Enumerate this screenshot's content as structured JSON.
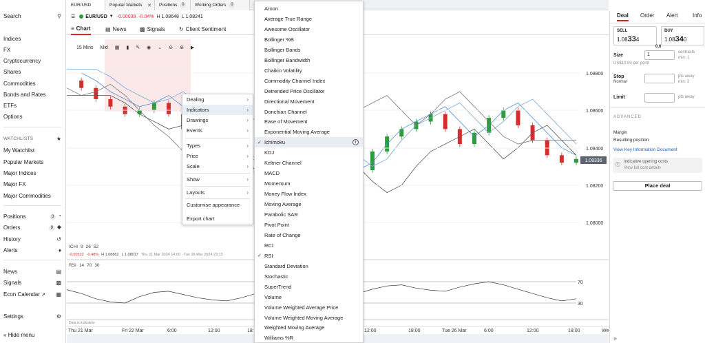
{
  "sidebar": {
    "search": "Search",
    "markets": [
      "Indices",
      "FX",
      "Cryptocurrency",
      "Shares",
      "Commodities",
      "Bonds and Rates",
      "ETFs",
      "Options"
    ],
    "watchlists_header": "WATCHLISTS",
    "watchlists": [
      "My Watchlist",
      "Popular Markets",
      "Major Indices",
      "Major FX",
      "Major Commodities"
    ],
    "positions": "Positions",
    "positions_count": "0",
    "orders": "Orders",
    "orders_count": "0",
    "history": "History",
    "alerts": "Alerts",
    "news": "News",
    "signals": "Signals",
    "econ_calendar": "Econ Calendar",
    "settings": "Settings",
    "hide_menu": "Hide menu"
  },
  "tabs": [
    {
      "label": "EUR/USD"
    },
    {
      "label": "Popular Markets"
    },
    {
      "label": "Positions",
      "count": "0"
    },
    {
      "label": "Working Orders",
      "count": "0"
    }
  ],
  "instrument": {
    "name": "EUR/USD",
    "change": "-0.00039",
    "change_pct": "-0.04%",
    "high": "H 1.08648",
    "low": "L 1.08241"
  },
  "chart_tabs": {
    "chart": "Chart",
    "news": "News",
    "signals": "Signals",
    "client_sentiment": "Client Sentiment"
  },
  "toolbar": {
    "interval": "15 Mins",
    "price_type": "Mid"
  },
  "ichimoku_legend": {
    "label": "ICHI",
    "p1": "9",
    "p2": "26",
    "p3": "52",
    "change": "-0.00522",
    "change_pct": "-0.48%",
    "high": "H 1.08862",
    "low": "L 1.08017",
    "range": "Thu 21 Mar 2024 14:00 - Tue 26 Mar 2024 23:15"
  },
  "rsi_legend": {
    "label": "RSI",
    "p1": "14",
    "p2": "70",
    "p3": "30"
  },
  "data_note": "Data is indicative",
  "chart_data": {
    "type": "line",
    "y_ticks": [
      "1.08800",
      "1.08600",
      "1.08400",
      "1.08200",
      "1.08000"
    ],
    "current_price": "1.08336",
    "rsi_ticks": [
      "70",
      "30"
    ],
    "x_ticks": [
      "Thu 21 Mar",
      "Fri 22 Mar",
      "6:00",
      "12:00",
      "18:00",
      "12:00",
      "18:00",
      "Tue 26 Mar",
      "6:00",
      "12:00",
      "18:00",
      "Wed"
    ],
    "close_series": [
      1.0876,
      1.0872,
      1.0866,
      1.0862,
      1.0858,
      1.086,
      1.0864,
      1.0858,
      1.085,
      1.0842,
      1.0836,
      1.0828,
      1.083,
      1.0826,
      1.0834,
      1.0842,
      1.0846,
      1.0838,
      1.083,
      1.0824,
      1.0828,
      1.0838,
      1.0846,
      1.085,
      1.0854,
      1.0858,
      1.085,
      1.0842,
      1.0848,
      1.0856,
      1.086,
      1.0852,
      1.0844,
      1.0836,
      1.0832,
      1.0834
    ],
    "rsi_series": [
      55,
      48,
      38,
      32,
      30,
      42,
      50,
      52,
      46,
      40,
      36,
      34,
      40,
      48,
      46,
      52,
      55,
      50,
      44,
      42,
      48,
      56,
      62,
      64,
      58,
      54,
      52,
      60,
      66,
      70,
      64,
      56,
      48,
      40,
      34,
      38
    ]
  },
  "context_menu": [
    {
      "label": "Dealing",
      "arrow": "›"
    },
    {
      "label": "Indicators",
      "arrow": "›"
    },
    {
      "label": "Drawings",
      "arrow": "›"
    },
    {
      "label": "Events",
      "arrow": "›"
    },
    {
      "label": "Types",
      "arrow": "›"
    },
    {
      "label": "Price",
      "arrow": "›"
    },
    {
      "label": "Scale",
      "arrow": "›"
    },
    {
      "label": "Show",
      "arrow": "›"
    },
    {
      "label": "Layouts",
      "arrow": "›"
    },
    {
      "label": "Customise appearance"
    },
    {
      "label": "Export chart"
    }
  ],
  "indicators": [
    "Aroon",
    "Average True Range",
    "Awesome Oscillator",
    "Bollinger %B",
    "Bollinger Bands",
    "Bollinger Bandwidth",
    "Chaikin Volatility",
    "Commodity Channel Index",
    "Detrended Price Oscillator",
    "Directional Movement",
    "Donchian Channel",
    "Ease of Movement",
    "Exponential Moving Average",
    "Ichimoku",
    "KDJ",
    "Keltner Channel",
    "MACD",
    "Momentum",
    "Money Flow Index",
    "Moving Average",
    "Parabolic SAR",
    "Pivot Point",
    "Rate of Change",
    "RCI",
    "RSI",
    "Standard Deviation",
    "Stochastic",
    "SuperTrend",
    "Volume",
    "Volume Weighted Average Price",
    "Volume Weighted Moving Average",
    "Weighted Moving Average",
    "Williams %R"
  ],
  "right_panel": {
    "tabs": [
      "Deal",
      "Order",
      "Alert",
      "Info"
    ],
    "sell_label": "SELL",
    "sell_price_prefix": "1.08",
    "sell_price_big": "33",
    "sell_price_small": "4",
    "buy_label": "BUY",
    "buy_price_prefix": "1.08",
    "buy_price_big": "34",
    "buy_price_small": "0",
    "spread": "0.6",
    "size_label": "Size",
    "size_value": "1",
    "size_unit": "contracts",
    "size_min": "min: 1",
    "size_per_point": "US$10.00 per point",
    "stop_label": "Stop",
    "stop_type": "Normal",
    "stop_unit": "pts away",
    "stop_min": "min: 2",
    "limit_label": "Limit",
    "limit_unit": "pts away",
    "advanced": "ADVANCED",
    "margin": "Margin",
    "resulting_position": "Resulting position",
    "kid_link": "View Key Information Document",
    "costs_title": "Indicative opening costs",
    "costs_link": "View full cost details",
    "place_deal": "Place deal"
  },
  "colors": {
    "up": "#2e9b3c",
    "down": "#d32f2f",
    "accent": "#e02020"
  }
}
